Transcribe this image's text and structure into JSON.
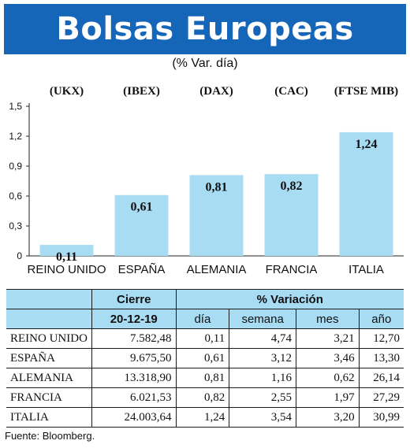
{
  "title": "Bolsas Europeas",
  "subtitle": "(% Var. día)",
  "chart_data": {
    "type": "bar",
    "index_labels": [
      "(UKX)",
      "(IBEX)",
      "(DAX)",
      "(CAC)",
      "(FTSE MIB)"
    ],
    "categories": [
      "REINO UNIDO",
      "ESPAÑA",
      "ALEMANIA",
      "FRANCIA",
      "ITALIA"
    ],
    "values": [
      0.11,
      0.61,
      0.81,
      0.82,
      1.24
    ],
    "value_labels": [
      "0,11",
      "0,61",
      "0,81",
      "0,82",
      "1,24"
    ],
    "yticks": [
      0,
      0.3,
      0.6,
      0.9,
      1.2,
      1.5
    ],
    "ytick_labels": [
      "0",
      "0,3",
      "0,6",
      "0,9",
      "1,2",
      "1,5"
    ],
    "ylim": [
      0,
      1.5
    ],
    "bar_color": "#a8dcf3"
  },
  "table": {
    "group_headers": {
      "cierre": "Cierre",
      "variacion": "% Variación"
    },
    "sub_headers": {
      "date": "20-12-19",
      "dia": "día",
      "semana": "semana",
      "mes": "mes",
      "anio": "año"
    },
    "rows": [
      {
        "country": "REINO UNIDO",
        "cierre": "7.582,48",
        "dia": "0,11",
        "semana": "4,74",
        "mes": "3,21",
        "anio": "12,70"
      },
      {
        "country": "ESPAÑA",
        "cierre": "9.675,50",
        "dia": "0,61",
        "semana": "3,12",
        "mes": "3,46",
        "anio": "13,30"
      },
      {
        "country": "ALEMANIA",
        "cierre": "13.318,90",
        "dia": "0,81",
        "semana": "1,16",
        "mes": "0,62",
        "anio": "26,14"
      },
      {
        "country": "FRANCIA",
        "cierre": "6.021,53",
        "dia": "0,82",
        "semana": "2,55",
        "mes": "1,97",
        "anio": "27,29"
      },
      {
        "country": "ITALIA",
        "cierre": "24.003,64",
        "dia": "1,24",
        "semana": "3,54",
        "mes": "3,20",
        "anio": "30,99"
      }
    ]
  },
  "source": "Fuente: Bloomberg.",
  "colors": {
    "title_bg": "#1565b8",
    "header_bg": "#a8dcf3"
  }
}
